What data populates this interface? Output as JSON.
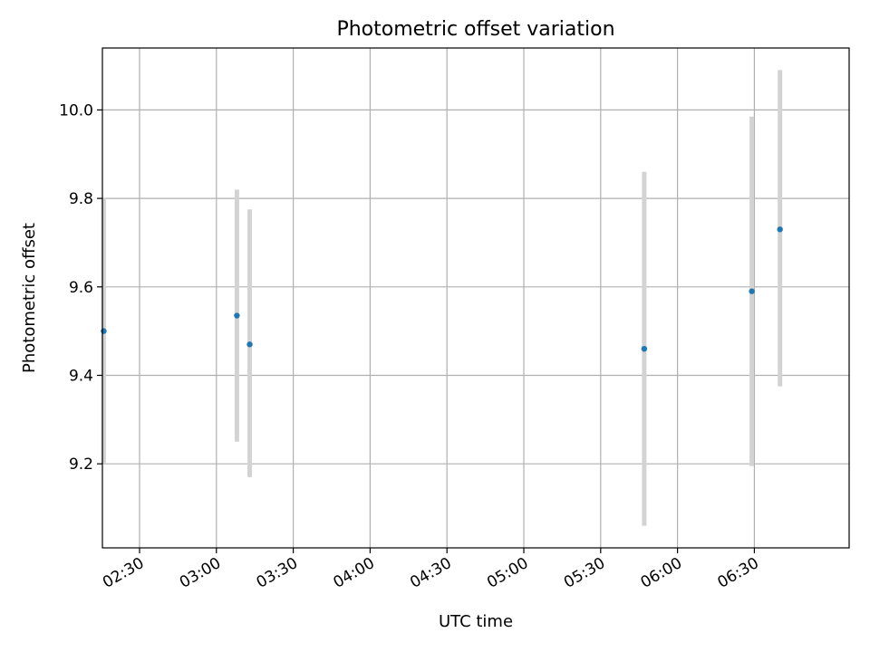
{
  "chart_data": {
    "type": "scatter",
    "title": "Photometric offset variation",
    "xlabel": "UTC time",
    "ylabel": "Photometric offset",
    "x_unit": "UTC time of day",
    "xlim": [
      "02:15:30",
      "07:07:00"
    ],
    "ylim": [
      9.01,
      10.14
    ],
    "x_ticks": [
      "02:30",
      "03:00",
      "03:30",
      "04:00",
      "04:30",
      "05:00",
      "05:30",
      "06:00",
      "06:30"
    ],
    "y_ticks": [
      "9.2",
      "9.4",
      "9.6",
      "9.8",
      "10.0"
    ],
    "grid": true,
    "series": [
      {
        "marker_color": "#1f77b4",
        "errorbar_color": "#d3d3d3",
        "points": [
          {
            "x": "02:16:00",
            "y": 9.5,
            "y_low": 9.2,
            "y_high": 9.8
          },
          {
            "x": "03:08:00",
            "y": 9.535,
            "y_low": 9.25,
            "y_high": 9.82
          },
          {
            "x": "03:13:00",
            "y": 9.47,
            "y_low": 9.17,
            "y_high": 9.775
          },
          {
            "x": "05:47:00",
            "y": 9.46,
            "y_low": 9.06,
            "y_high": 9.86
          },
          {
            "x": "06:29:00",
            "y": 9.59,
            "y_low": 9.195,
            "y_high": 9.985
          },
          {
            "x": "06:40:00",
            "y": 9.73,
            "y_low": 9.375,
            "y_high": 10.09
          }
        ]
      }
    ]
  }
}
